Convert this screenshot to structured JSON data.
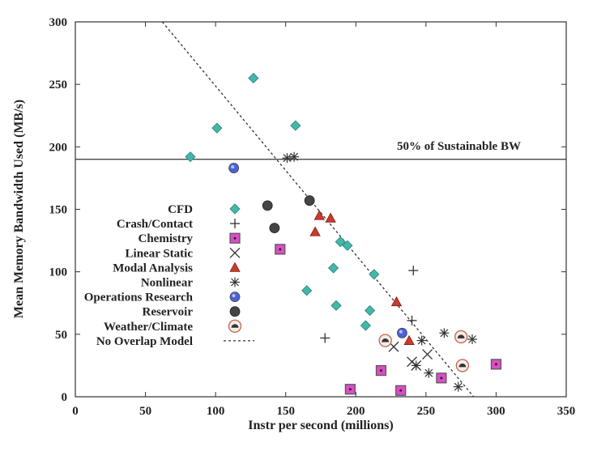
{
  "chart_data": {
    "type": "scatter",
    "xlabel": "Instr per second (millions)",
    "ylabel": "Mean Memory Bandwidth Used (MB/s)",
    "xlim": [
      0,
      350
    ],
    "ylim": [
      0,
      300
    ],
    "xticks": [
      0,
      50,
      100,
      150,
      200,
      250,
      300,
      350
    ],
    "yticks": [
      0,
      50,
      100,
      150,
      200,
      250,
      300
    ],
    "grid": false,
    "legend_position": "left-center",
    "reference_line": {
      "label": "50% of Sustainable BW",
      "y": 190
    },
    "model_line": {
      "name": "No Overlap Model",
      "points": [
        [
          62,
          300
        ],
        [
          284,
          0
        ]
      ]
    },
    "colors": {
      "teal": "#43b7aa",
      "magenta": "#d94fc4",
      "red": "#cc3a2a",
      "blue": "#4b62d6",
      "dark": "#444444",
      "ink": "#333333"
    },
    "series": [
      {
        "name": "CFD",
        "marker": "diamond",
        "points": [
          [
            82,
            192
          ],
          [
            101,
            215
          ],
          [
            127,
            255
          ],
          [
            157,
            217
          ],
          [
            165,
            85
          ],
          [
            184,
            103
          ],
          [
            186,
            73
          ],
          [
            189,
            124
          ],
          [
            194,
            121
          ],
          [
            207,
            57
          ],
          [
            210,
            69
          ],
          [
            213,
            98
          ]
        ]
      },
      {
        "name": "Crash/Contact",
        "marker": "plus",
        "points": [
          [
            178,
            47
          ],
          [
            240,
            61
          ],
          [
            241,
            101
          ]
        ]
      },
      {
        "name": "Chemistry",
        "marker": "square",
        "points": [
          [
            146,
            118
          ],
          [
            196,
            6
          ],
          [
            218,
            21
          ],
          [
            232,
            5
          ],
          [
            261,
            15
          ],
          [
            300,
            26
          ]
        ]
      },
      {
        "name": "Linear Static",
        "marker": "x",
        "points": [
          [
            227,
            40
          ],
          [
            240,
            28
          ],
          [
            243,
            25
          ],
          [
            251,
            34
          ]
        ]
      },
      {
        "name": "Modal Analysis",
        "marker": "triangle",
        "points": [
          [
            171,
            132
          ],
          [
            174,
            145
          ],
          [
            182,
            143
          ],
          [
            229,
            76
          ],
          [
            238,
            45
          ]
        ]
      },
      {
        "name": "Nonlinear",
        "marker": "asterisk",
        "points": [
          [
            151,
            191
          ],
          [
            156,
            192
          ],
          [
            243,
            25
          ],
          [
            247,
            45
          ],
          [
            252,
            19
          ],
          [
            263,
            51
          ],
          [
            273,
            8
          ],
          [
            283,
            46
          ]
        ]
      },
      {
        "name": "Operations Research",
        "marker": "circle-blue",
        "points": [
          [
            113,
            183
          ],
          [
            233,
            51
          ]
        ]
      },
      {
        "name": "Reservoir",
        "marker": "circle-dark",
        "points": [
          [
            137,
            153
          ],
          [
            142,
            135
          ],
          [
            167,
            157
          ]
        ]
      },
      {
        "name": "Weather/Climate",
        "marker": "weather",
        "points": [
          [
            221,
            45
          ],
          [
            275,
            48
          ],
          [
            276,
            25
          ]
        ]
      }
    ]
  }
}
